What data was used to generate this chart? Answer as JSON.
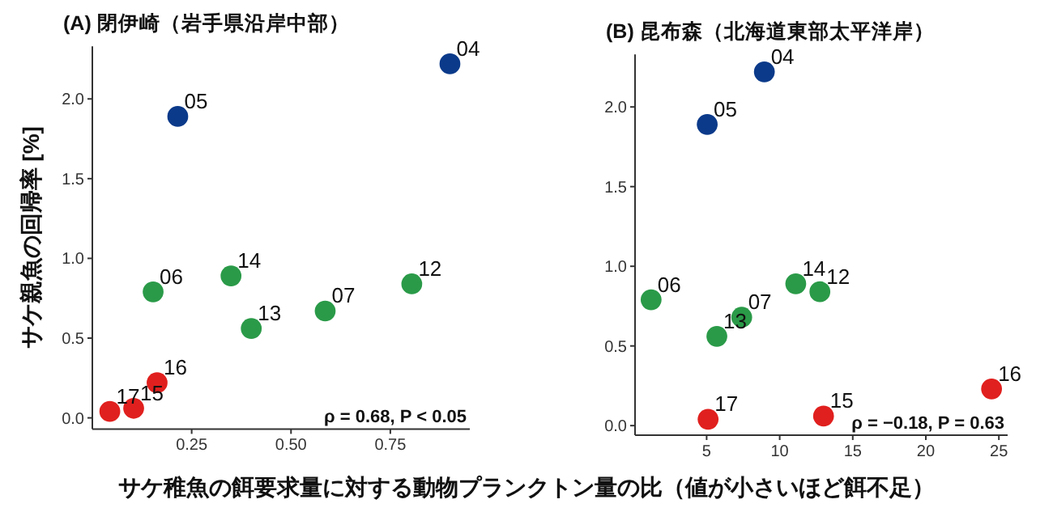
{
  "chart_data": [
    {
      "type": "scatter",
      "title": "(A) 閉伊崎（岩手県沿岸中部）",
      "ylabel": "サケ親魚の回帰率 [%]",
      "xlim": [
        0,
        0.95
      ],
      "ylim": [
        -0.07,
        2.33
      ],
      "xticks": [
        {
          "value": 0.25,
          "label": "0.25"
        },
        {
          "value": 0.5,
          "label": "0.50"
        },
        {
          "value": 0.75,
          "label": "0.75"
        }
      ],
      "yticks": [
        {
          "value": 0,
          "label": "0.0"
        },
        {
          "value": 0.5,
          "label": "0.5"
        },
        {
          "value": 1,
          "label": "1.0"
        },
        {
          "value": 1.5,
          "label": "1.5"
        },
        {
          "value": 2,
          "label": "2.0"
        }
      ],
      "marker": "circle",
      "series": [
        {
          "color": "#0b3a8a",
          "x": [
            0.9,
            0.215
          ],
          "values": [
            2.22,
            1.89
          ]
        },
        {
          "color": "#2a9a48",
          "x": [
            0.153,
            0.349,
            0.4,
            0.586,
            0.804
          ],
          "values": [
            0.79,
            0.89,
            0.56,
            0.67,
            0.84
          ]
        },
        {
          "color": "#e0201e",
          "x": [
            0.163,
            0.104,
            0.044
          ],
          "values": [
            0.22,
            0.06,
            0.04
          ]
        }
      ],
      "annotations": [
        {
          "text": "04",
          "x": 0.9,
          "y": 2.22
        },
        {
          "text": "05",
          "x": 0.215,
          "y": 1.89
        },
        {
          "text": "06",
          "x": 0.153,
          "y": 0.79
        },
        {
          "text": "14",
          "x": 0.349,
          "y": 0.89
        },
        {
          "text": "13",
          "x": 0.4,
          "y": 0.56
        },
        {
          "text": "07",
          "x": 0.586,
          "y": 0.67
        },
        {
          "text": "12",
          "x": 0.804,
          "y": 0.84
        },
        {
          "text": "16",
          "x": 0.163,
          "y": 0.22
        },
        {
          "text": "15",
          "x": 0.104,
          "y": 0.06
        },
        {
          "text": "17",
          "x": 0.044,
          "y": 0.04
        },
        "ρ = 0.68, P < 0.05"
      ]
    },
    {
      "type": "scatter",
      "title": "(B) 昆布森（北海道東部太平洋岸）",
      "xlabel": "サケ稚魚の餌要求量に対する動物プランクトン量の比（値が小さいほど餌不足）",
      "xlim": [
        0.1,
        25.6
      ],
      "ylim": [
        -0.06,
        2.33
      ],
      "xticks": [
        5,
        10,
        15,
        20,
        25
      ],
      "yticks": [
        {
          "value": 0,
          "label": "0.0"
        },
        {
          "value": 0.5,
          "label": "0.5"
        },
        {
          "value": 1,
          "label": "1.0"
        },
        {
          "value": 1.5,
          "label": "1.5"
        },
        {
          "value": 2,
          "label": "2.0"
        }
      ],
      "marker": "circle",
      "series": [
        {
          "color": "#0b3a8a",
          "x": [
            8.95,
            5.04
          ],
          "values": [
            2.22,
            1.89
          ]
        },
        {
          "color": "#2a9a48",
          "x": [
            1.2,
            5.7,
            7.4,
            11.1,
            12.75
          ],
          "values": [
            0.79,
            0.56,
            0.68,
            0.89,
            0.84
          ]
        },
        {
          "color": "#e0201e",
          "x": [
            24.5,
            13.0,
            5.1
          ],
          "values": [
            0.23,
            0.06,
            0.04
          ]
        }
      ],
      "annotations": [
        {
          "text": "04",
          "x": 8.95,
          "y": 2.22
        },
        {
          "text": "05",
          "x": 5.04,
          "y": 1.89
        },
        {
          "text": "06",
          "x": 1.2,
          "y": 0.79
        },
        {
          "text": "13",
          "x": 5.7,
          "y": 0.56
        },
        {
          "text": "07",
          "x": 7.4,
          "y": 0.68
        },
        {
          "text": "14",
          "x": 11.1,
          "y": 0.89
        },
        {
          "text": "12",
          "x": 12.75,
          "y": 0.84
        },
        {
          "text": "16",
          "x": 24.5,
          "y": 0.23
        },
        {
          "text": "15",
          "x": 13.0,
          "y": 0.06
        },
        {
          "text": "17",
          "x": 5.1,
          "y": 0.04
        },
        "ρ = −0.18, P = 0.63"
      ]
    }
  ]
}
